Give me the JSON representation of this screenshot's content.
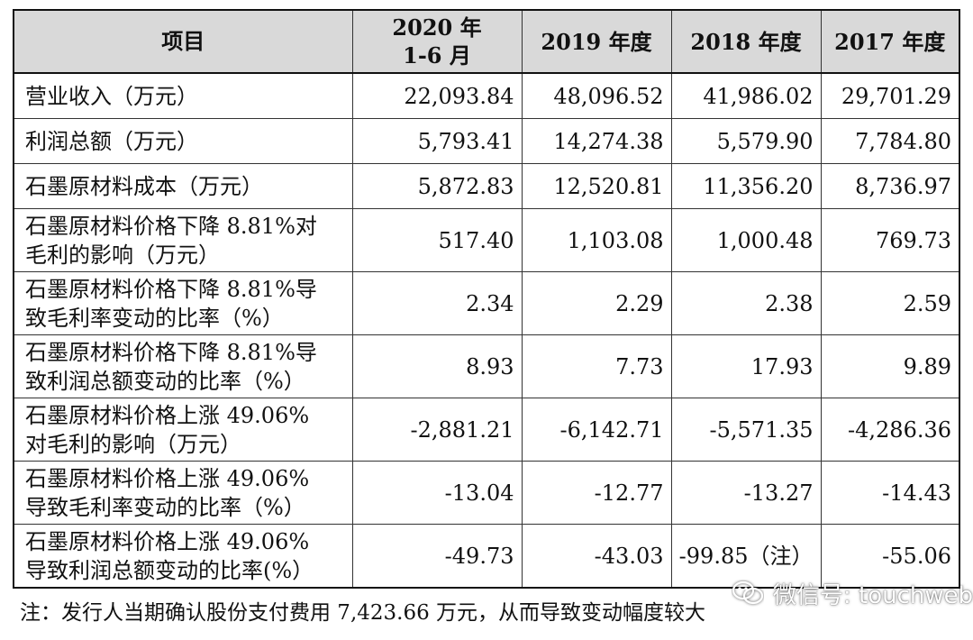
{
  "table": {
    "headers": [
      "项目",
      "2020 年\n1-6 月",
      "2019 年度",
      "2018 年度",
      "2017 年度"
    ],
    "rows": [
      {
        "label": [
          "营业收入（万元）"
        ],
        "values": [
          "22,093.84",
          "48,096.52",
          "41,986.02",
          "29,701.29"
        ]
      },
      {
        "label": [
          "利润总额（万元）"
        ],
        "values": [
          "5,793.41",
          "14,274.38",
          "5,579.90",
          "7,784.80"
        ]
      },
      {
        "label": [
          "石墨原材料成本（万元）"
        ],
        "values": [
          "5,872.83",
          "12,520.81",
          "11,356.20",
          "8,736.97"
        ]
      },
      {
        "label": [
          "石墨原材料价格下降 8.81%对",
          "毛利的影响（万元）"
        ],
        "values": [
          "517.40",
          "1,103.08",
          "1,000.48",
          "769.73"
        ]
      },
      {
        "label": [
          "石墨原材料价格下降 8.81%导",
          "致毛利率变动的比率（%）"
        ],
        "values": [
          "2.34",
          "2.29",
          "2.38",
          "2.59"
        ]
      },
      {
        "label": [
          "石墨原材料价格下降 8.81%导",
          "致利润总额变动的比率（%）"
        ],
        "values": [
          "8.93",
          "7.73",
          "17.93",
          "9.89"
        ]
      },
      {
        "label": [
          "石墨原材料价格上涨 49.06%",
          "对毛利的影响（万元）"
        ],
        "values": [
          "-2,881.21",
          "-6,142.71",
          "-5,571.35",
          "-4,286.36"
        ]
      },
      {
        "label": [
          "石墨原材料价格上涨 49.06%",
          "导致毛利率变动的比率（%）"
        ],
        "values": [
          "-13.04",
          "-12.77",
          "-13.27",
          "-14.43"
        ]
      },
      {
        "label": [
          "石墨原材料价格上涨 49.06%",
          "导致利润总额变动的比率(%）"
        ],
        "values": [
          "-49.73",
          "-43.03",
          "-99.85（注）",
          "-55.06"
        ]
      }
    ]
  },
  "footnote": "注：发行人当期确认股份支付费用 7,423.66 万元，从而导致变动幅度较大",
  "watermark": {
    "text": "微信号: touchweb",
    "icon": "wechat-icon"
  }
}
